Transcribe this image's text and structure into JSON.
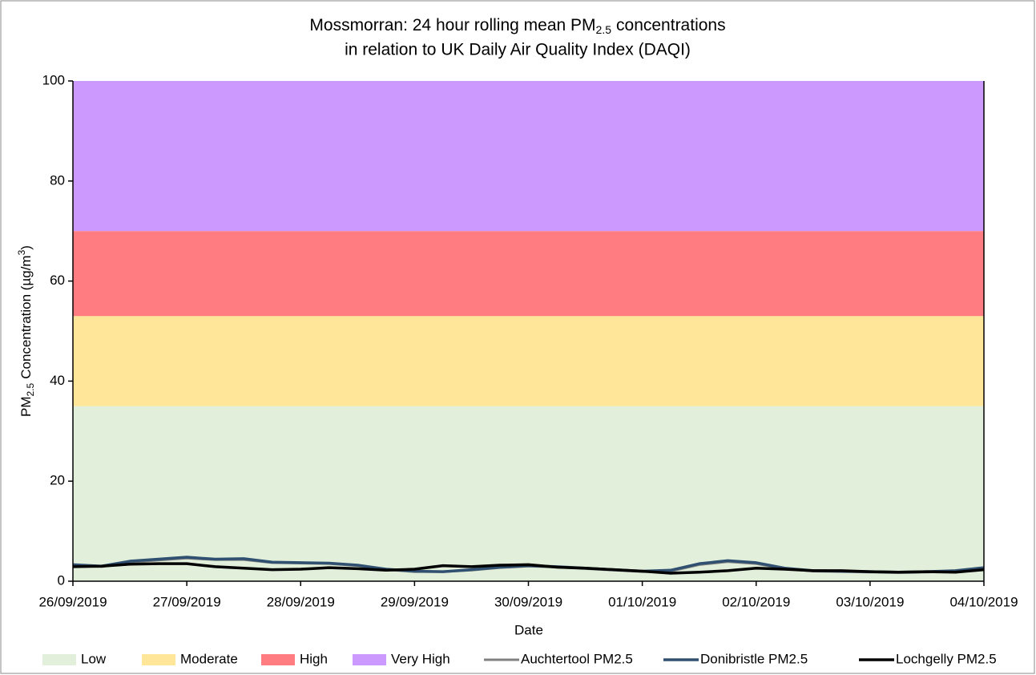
{
  "chart_data": {
    "type": "line",
    "title": {
      "before": "Mossmorran: 24 hour rolling mean PM",
      "sub": "2.5",
      "after": "concentrations",
      "line2": "in relation to UK Daily Air Quality Index (DAQI)"
    },
    "y_label": {
      "before": "PM",
      "sub": "2.5",
      "middle": "Concentration (µg/m",
      "sup": "3",
      "after": ")"
    },
    "x_label": "Date",
    "ylim": [
      0,
      100
    ],
    "yticks": [
      0,
      20,
      40,
      60,
      80,
      100
    ],
    "xlim": [
      0,
      8
    ],
    "xticks": [
      {
        "value": 0,
        "label": "26/09/2019"
      },
      {
        "value": 1,
        "label": "27/09/2019"
      },
      {
        "value": 2,
        "label": "28/09/2019"
      },
      {
        "value": 3,
        "label": "29/09/2019"
      },
      {
        "value": 4,
        "label": "30/09/2019"
      },
      {
        "value": 5,
        "label": "01/10/2019"
      },
      {
        "value": 6,
        "label": "02/10/2019"
      },
      {
        "value": 7,
        "label": "03/10/2019"
      },
      {
        "value": 8,
        "label": "04/10/2019"
      }
    ],
    "bands": [
      {
        "name": "Low",
        "color": "#e2efda",
        "range": [
          0,
          35
        ]
      },
      {
        "name": "Moderate",
        "color": "#ffe699",
        "range": [
          35,
          53
        ]
      },
      {
        "name": "High",
        "color": "#ff7c80",
        "range": [
          53,
          70
        ]
      },
      {
        "name": "Very High",
        "color": "#cc99ff",
        "range": [
          70,
          100
        ]
      }
    ],
    "x": [
      0,
      0.25,
      0.5,
      0.75,
      1,
      1.25,
      1.5,
      1.75,
      2,
      2.25,
      2.5,
      2.75,
      3,
      3.25,
      3.5,
      3.75,
      4,
      4.25,
      4.5,
      4.75,
      5,
      5.25,
      5.5,
      5.75,
      6,
      6.25,
      6.5,
      6.75,
      7,
      7.25,
      7.5,
      7.75,
      8
    ],
    "series": [
      {
        "name": "Auchtertool PM2.5",
        "color": "#808080",
        "width": 3,
        "values": [
          3.1,
          2.9,
          3.8,
          4.2,
          4.6,
          4.3,
          4.3,
          3.7,
          3.6,
          3.5,
          3.1,
          2.3,
          1.9,
          1.9,
          2.2,
          2.7,
          3.0,
          2.8,
          2.5,
          2.2,
          1.9,
          2.0,
          3.3,
          3.9,
          3.5,
          2.5,
          2.0,
          1.9,
          1.8,
          1.7,
          1.8,
          2.0,
          2.5
        ]
      },
      {
        "name": "Donibristle PM2.5",
        "color": "#2f5070",
        "width": 3.5,
        "values": [
          3.3,
          3.0,
          4.0,
          4.4,
          4.8,
          4.4,
          4.5,
          3.8,
          3.7,
          3.6,
          3.2,
          2.4,
          2.0,
          1.9,
          2.3,
          2.8,
          3.1,
          2.9,
          2.6,
          2.3,
          2.0,
          2.2,
          3.5,
          4.1,
          3.7,
          2.6,
          2.1,
          2.0,
          1.9,
          1.8,
          1.9,
          2.1,
          2.7
        ]
      },
      {
        "name": "Lochgelly PM2.5",
        "color": "#000000",
        "width": 3.5,
        "values": [
          2.9,
          3.0,
          3.4,
          3.5,
          3.5,
          2.9,
          2.6,
          2.3,
          2.4,
          2.7,
          2.5,
          2.2,
          2.4,
          3.1,
          2.9,
          3.2,
          3.3,
          2.8,
          2.6,
          2.3,
          2.0,
          1.6,
          1.8,
          2.1,
          2.6,
          2.4,
          2.1,
          2.1,
          1.9,
          1.8,
          1.9,
          1.8,
          2.3
        ]
      }
    ]
  }
}
